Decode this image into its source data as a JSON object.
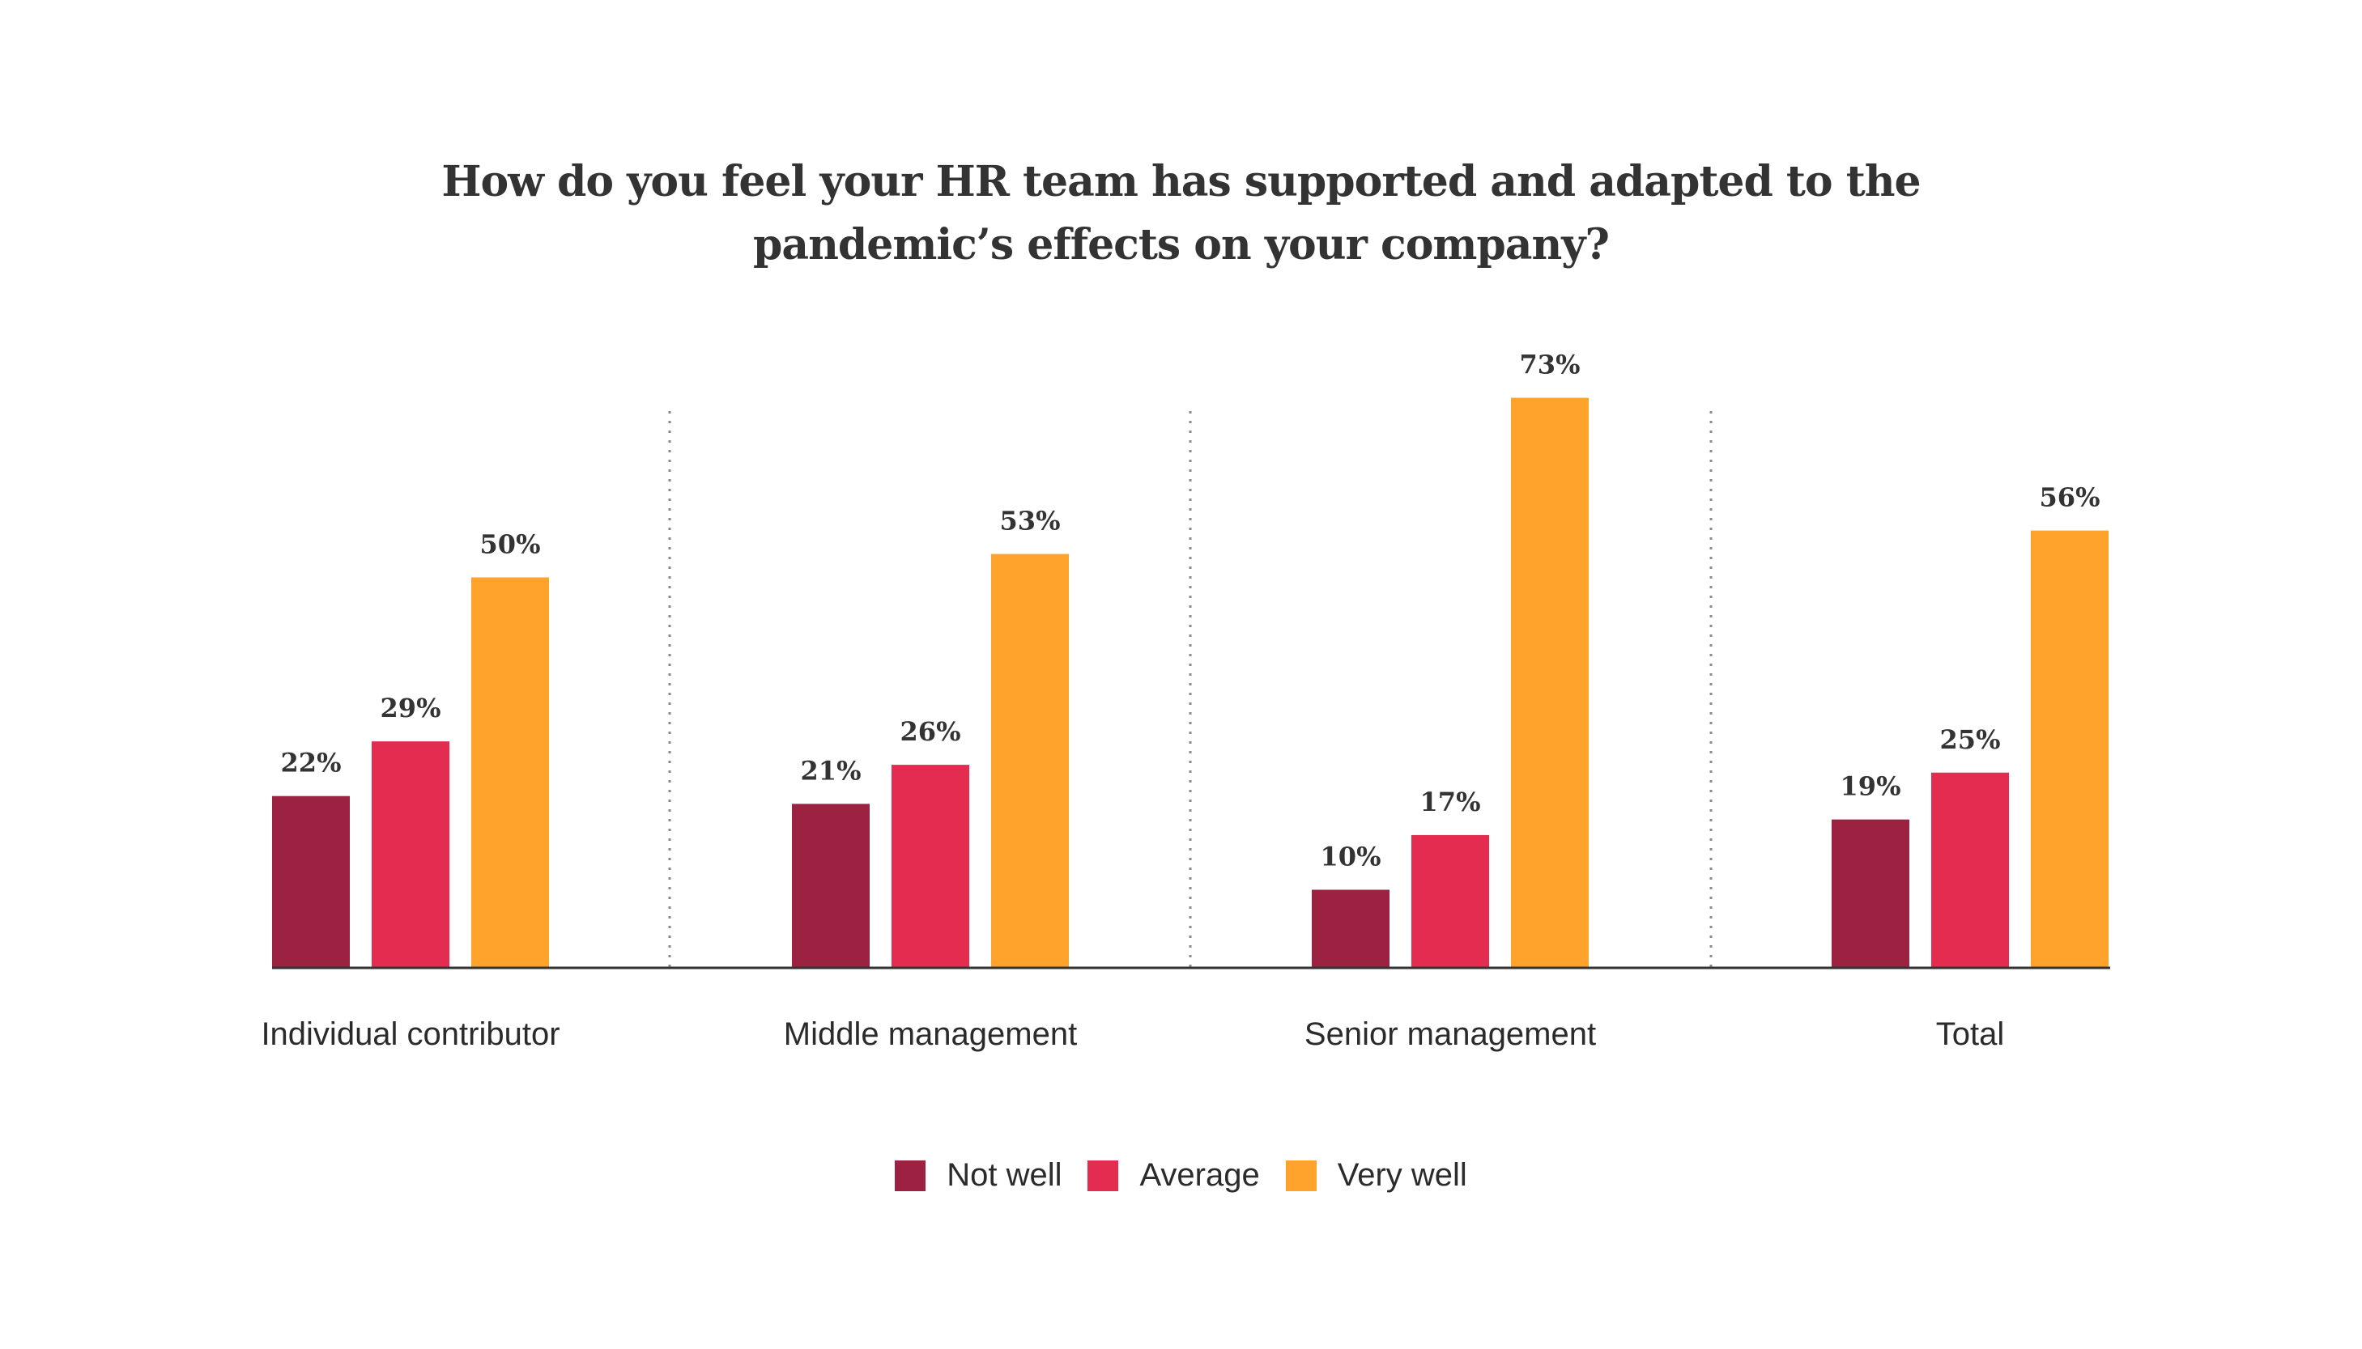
{
  "chart_data": {
    "type": "bar",
    "title": "How do you feel your HR team has supported and adapted to the pandemic’s effects on your company?",
    "title_lines": [
      "How do you feel your HR team has supported and adapted to the",
      "pandemic’s effects on your company?"
    ],
    "categories": [
      "Individual contributor",
      "Middle management",
      "Senior management",
      "Total"
    ],
    "series": [
      {
        "name": "Not well",
        "values": [
          22,
          21,
          10,
          19
        ],
        "labels": [
          "22%",
          "21%",
          "10%",
          "19%"
        ],
        "color": "#9c2242"
      },
      {
        "name": "Average",
        "values": [
          29,
          26,
          17,
          25
        ],
        "labels": [
          "29%",
          "26%",
          "17%",
          "25%"
        ],
        "color": "#e32c50"
      },
      {
        "name": "Very well",
        "values": [
          50,
          53,
          73,
          56
        ],
        "labels": [
          "50%",
          "53%",
          "73%",
          "56%"
        ],
        "color": "#ffa32c"
      }
    ],
    "ylim": [
      0,
      100
    ],
    "grid": false,
    "group_dividers": "dotted",
    "legend_position": "bottom-center"
  }
}
